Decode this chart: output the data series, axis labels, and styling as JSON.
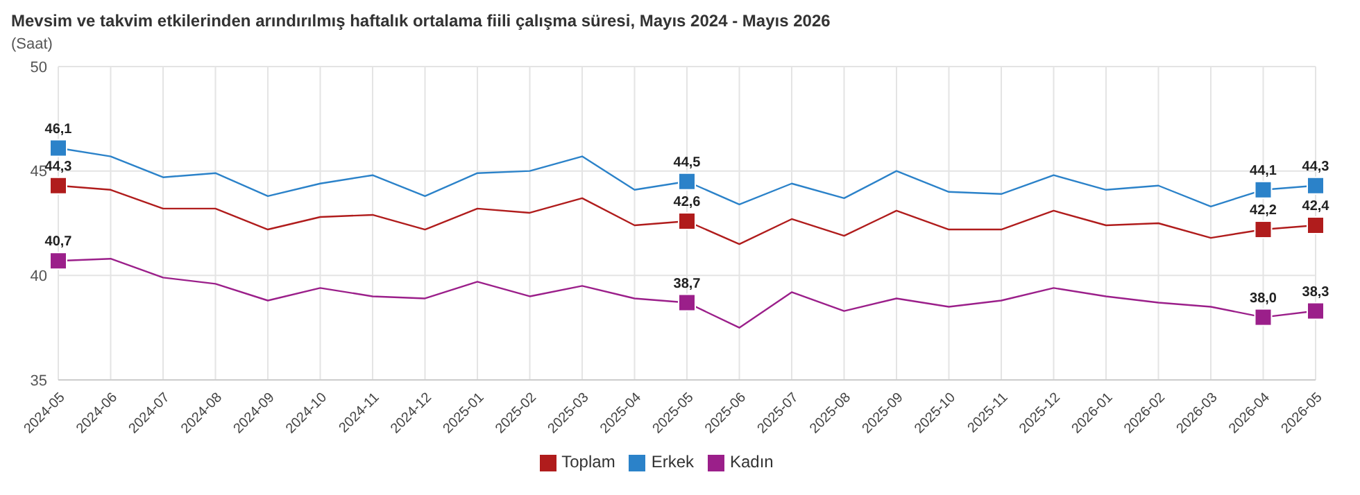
{
  "chart_data": {
    "type": "line",
    "title": "Mevsim ve takvim etkilerinden arındırılmış haftalık ortalama fiili çalışma süresi, Mayıs 2024 - Mayıs 2026",
    "subtitle": "(Saat)",
    "categories": [
      "2024-05",
      "2024-06",
      "2024-07",
      "2024-08",
      "2024-09",
      "2024-10",
      "2024-11",
      "2024-12",
      "2025-01",
      "2025-02",
      "2025-03",
      "2025-04",
      "2025-05",
      "2025-06",
      "2025-07",
      "2025-08",
      "2025-09",
      "2025-10",
      "2025-11",
      "2025-12",
      "2026-01",
      "2026-02",
      "2026-03",
      "2026-04",
      "2026-05"
    ],
    "series": [
      {
        "name": "Toplam",
        "color": "#b01c1c",
        "values": [
          44.3,
          44.1,
          43.2,
          43.2,
          42.2,
          42.8,
          42.9,
          42.2,
          43.2,
          43.0,
          43.7,
          42.4,
          42.6,
          41.5,
          42.7,
          41.9,
          43.1,
          42.2,
          42.2,
          43.1,
          42.4,
          42.5,
          41.8,
          42.2,
          42.4
        ],
        "value_labels": [
          "44,3",
          null,
          null,
          null,
          null,
          null,
          null,
          null,
          null,
          null,
          null,
          null,
          "42,6",
          null,
          null,
          null,
          null,
          null,
          null,
          null,
          null,
          null,
          null,
          "42,2",
          "42,4"
        ]
      },
      {
        "name": "Erkek",
        "color": "#2b82c9",
        "values": [
          46.1,
          45.7,
          44.7,
          44.9,
          43.8,
          44.4,
          44.8,
          43.8,
          44.9,
          45.0,
          45.7,
          44.1,
          44.5,
          43.4,
          44.4,
          43.7,
          45.0,
          44.0,
          43.9,
          44.8,
          44.1,
          44.3,
          43.3,
          44.1,
          44.3
        ],
        "value_labels": [
          "46,1",
          null,
          null,
          null,
          null,
          null,
          null,
          null,
          null,
          null,
          null,
          null,
          "44,5",
          null,
          null,
          null,
          null,
          null,
          null,
          null,
          null,
          null,
          null,
          "44,1",
          "44,3"
        ]
      },
      {
        "name": "Kadın",
        "color": "#9b1f8a",
        "values": [
          40.7,
          40.8,
          39.9,
          39.6,
          38.8,
          39.4,
          39.0,
          38.9,
          39.7,
          39.0,
          39.5,
          38.9,
          38.7,
          37.5,
          39.2,
          38.3,
          38.9,
          38.5,
          38.8,
          39.4,
          39.0,
          38.7,
          38.5,
          38.0,
          38.3
        ],
        "value_labels": [
          "40,7",
          null,
          null,
          null,
          null,
          null,
          null,
          null,
          null,
          null,
          null,
          null,
          "38,7",
          null,
          null,
          null,
          null,
          null,
          null,
          null,
          null,
          null,
          null,
          "38,0",
          "38,3"
        ]
      }
    ],
    "ylim": [
      35,
      50
    ],
    "yticks": [
      35,
      40,
      45,
      50
    ],
    "grid": true,
    "legend": "bottom",
    "line_style": "solid"
  }
}
